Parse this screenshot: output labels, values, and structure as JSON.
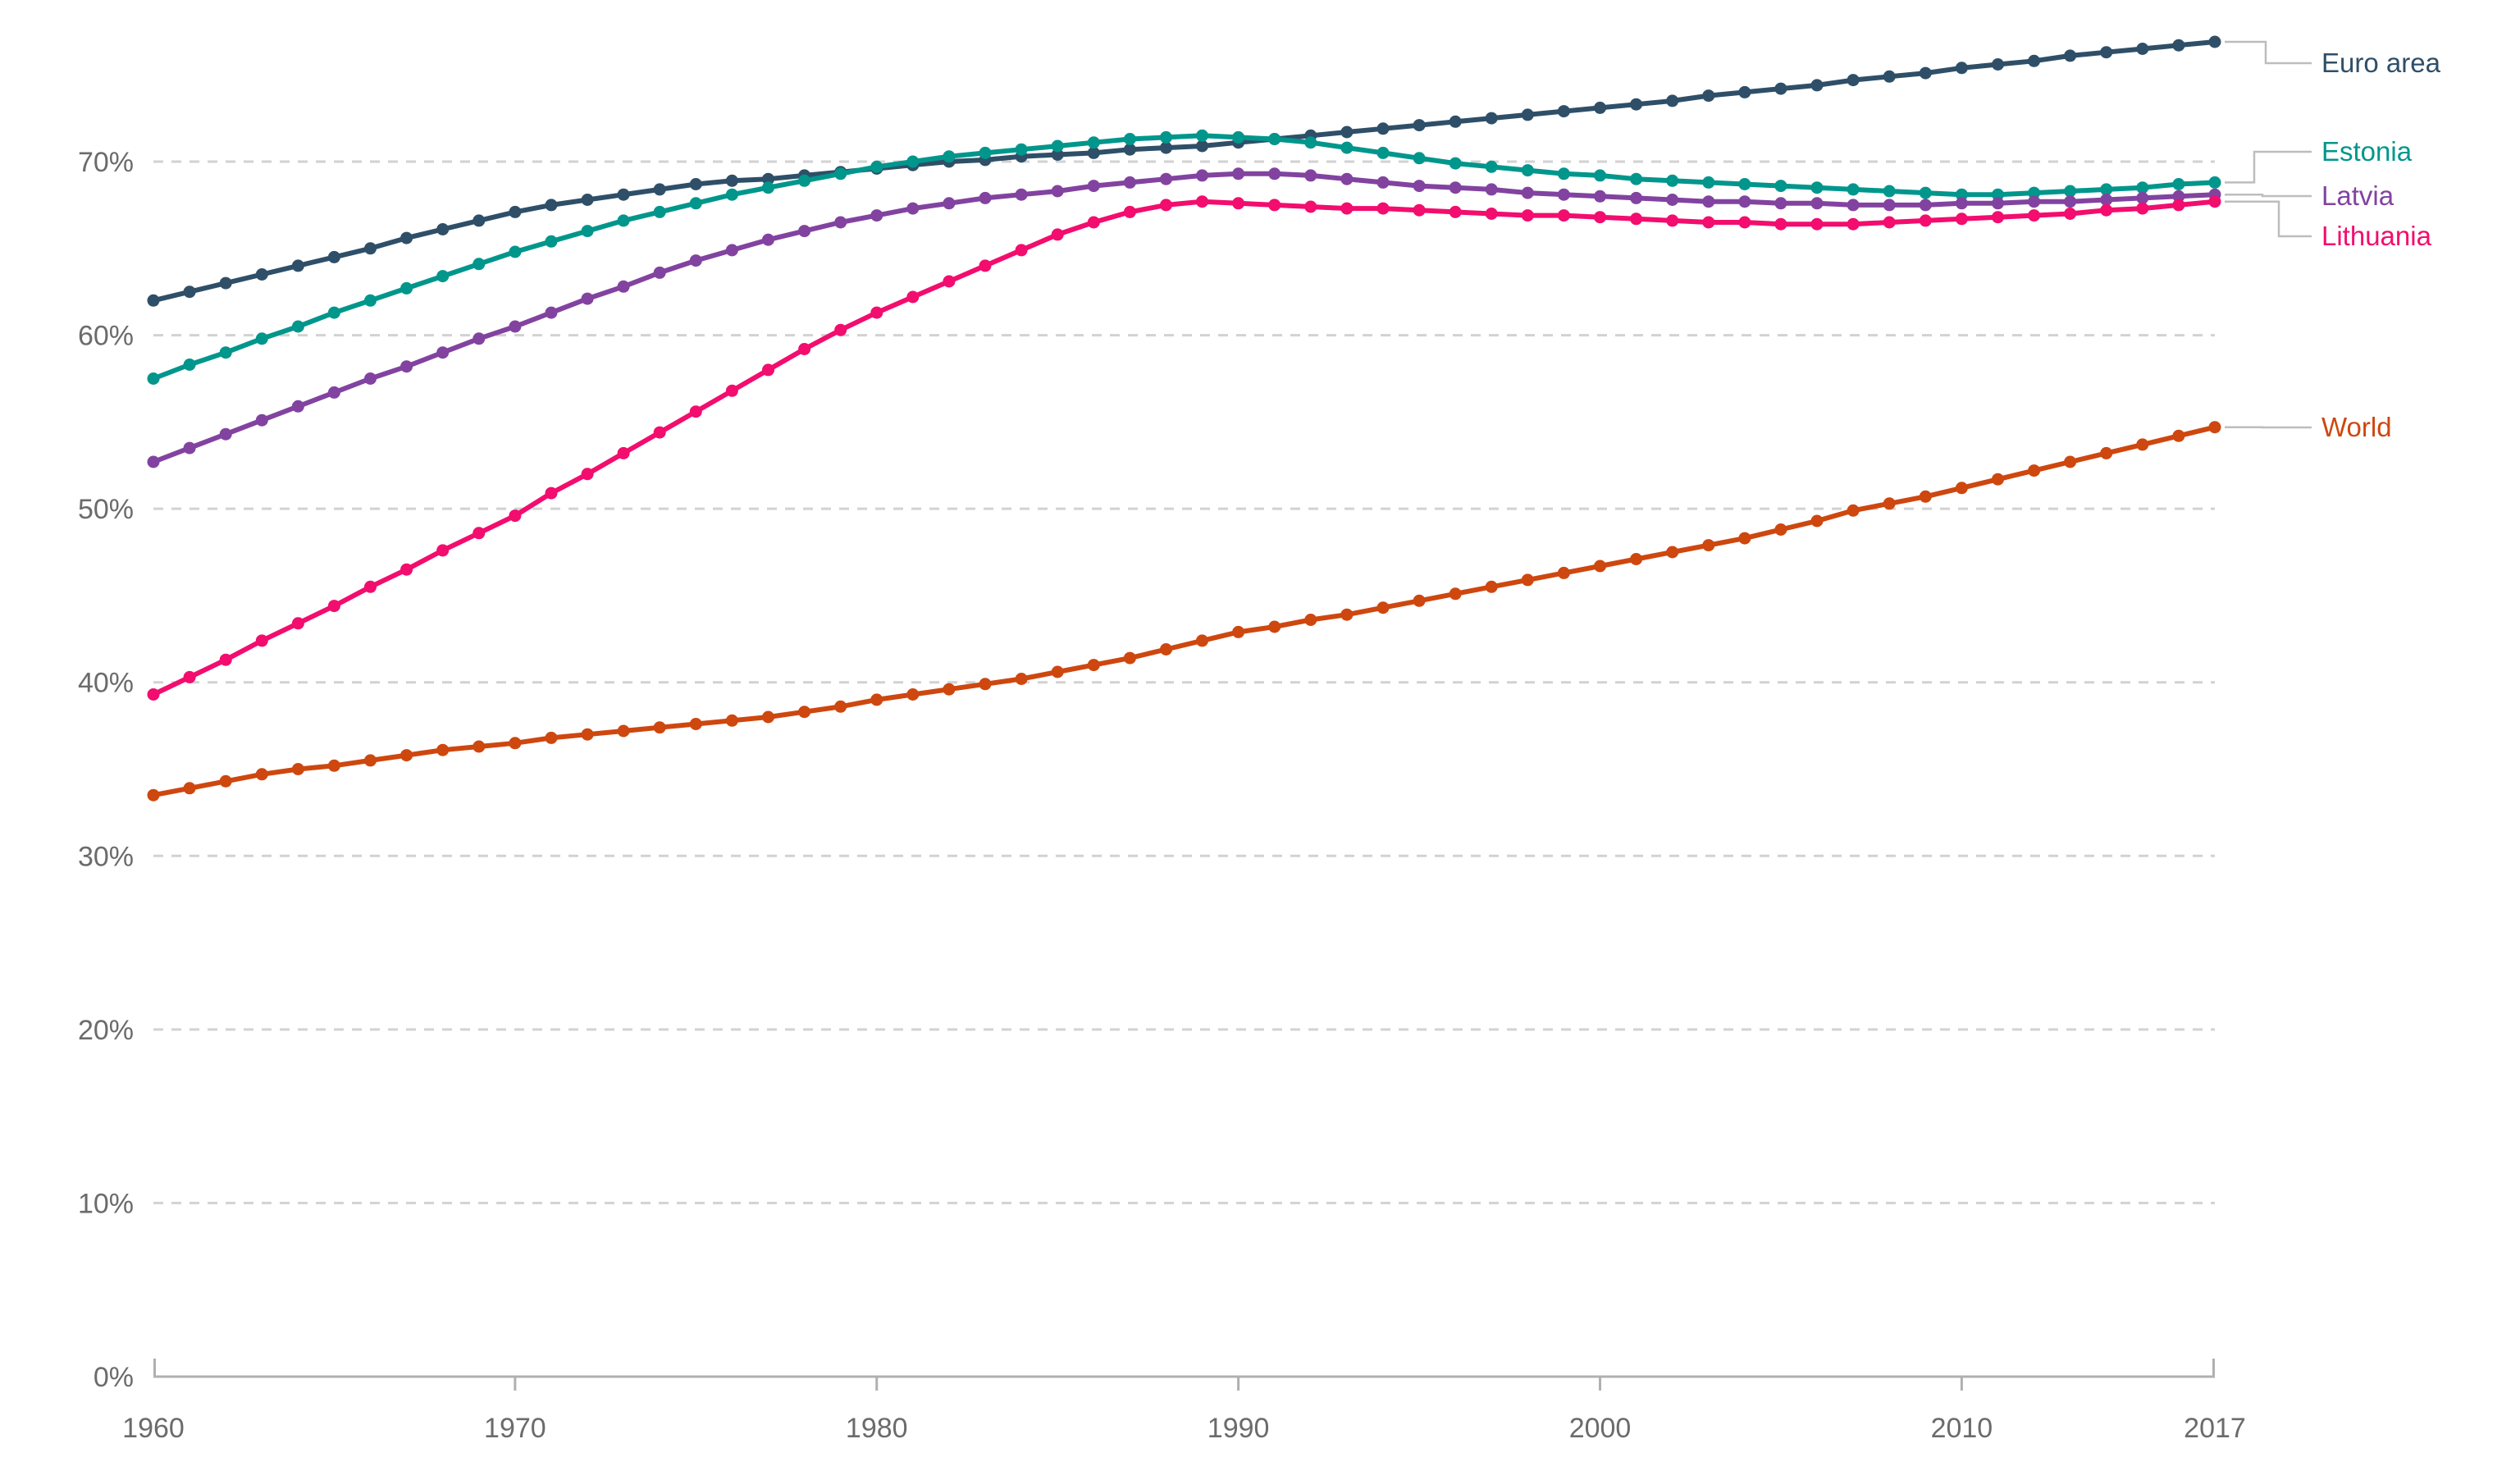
{
  "chart_data": {
    "type": "line",
    "title": "",
    "xlabel": "",
    "ylabel": "",
    "x_unit": "year",
    "y_unit": "percent",
    "xlim": [
      1960,
      2017
    ],
    "ylim": [
      0,
      79
    ],
    "grid": "horizontal-dashed",
    "legend_position": "right-end-labels",
    "x": [
      1960,
      1961,
      1962,
      1963,
      1964,
      1965,
      1966,
      1967,
      1968,
      1969,
      1970,
      1971,
      1972,
      1973,
      1974,
      1975,
      1976,
      1977,
      1978,
      1979,
      1980,
      1981,
      1982,
      1983,
      1984,
      1985,
      1986,
      1987,
      1988,
      1989,
      1990,
      1991,
      1992,
      1993,
      1994,
      1995,
      1996,
      1997,
      1998,
      1999,
      2000,
      2001,
      2002,
      2003,
      2004,
      2005,
      2006,
      2007,
      2008,
      2009,
      2010,
      2011,
      2012,
      2013,
      2014,
      2015,
      2016,
      2017
    ],
    "x_tick_labels": [
      "1960",
      "1970",
      "1980",
      "1990",
      "2000",
      "2010",
      "2017"
    ],
    "x_tick_years": [
      1960,
      1970,
      1980,
      1990,
      2000,
      2010,
      2017
    ],
    "y_tick_labels": [
      "0%",
      "10%",
      "20%",
      "30%",
      "40%",
      "50%",
      "60%",
      "70%"
    ],
    "y_tick_values": [
      0,
      10,
      20,
      30,
      40,
      50,
      60,
      70
    ],
    "series": [
      {
        "name": "Euro area",
        "color": "#2F4F68",
        "values": [
          62.0,
          62.5,
          63.0,
          63.5,
          64.0,
          64.5,
          65.0,
          65.6,
          66.1,
          66.6,
          67.1,
          67.5,
          67.8,
          68.1,
          68.4,
          68.7,
          68.9,
          69.0,
          69.2,
          69.4,
          69.6,
          69.8,
          70.0,
          70.1,
          70.3,
          70.4,
          70.5,
          70.7,
          70.8,
          70.9,
          71.1,
          71.3,
          71.5,
          71.7,
          71.9,
          72.1,
          72.3,
          72.5,
          72.7,
          72.9,
          73.1,
          73.3,
          73.5,
          73.8,
          74.0,
          74.2,
          74.4,
          74.7,
          74.9,
          75.1,
          75.4,
          75.6,
          75.8,
          76.1,
          76.3,
          76.5,
          76.7,
          76.9
        ]
      },
      {
        "name": "Estonia",
        "color": "#00968C",
        "values": [
          57.5,
          58.3,
          59.0,
          59.8,
          60.5,
          61.3,
          62.0,
          62.7,
          63.4,
          64.1,
          64.8,
          65.4,
          66.0,
          66.6,
          67.1,
          67.6,
          68.1,
          68.5,
          68.9,
          69.3,
          69.7,
          70.0,
          70.3,
          70.5,
          70.7,
          70.9,
          71.1,
          71.3,
          71.4,
          71.5,
          71.4,
          71.3,
          71.1,
          70.8,
          70.5,
          70.2,
          69.9,
          69.7,
          69.5,
          69.3,
          69.2,
          69.0,
          68.9,
          68.8,
          68.7,
          68.6,
          68.5,
          68.4,
          68.3,
          68.2,
          68.1,
          68.1,
          68.2,
          68.3,
          68.4,
          68.5,
          68.7,
          68.8
        ]
      },
      {
        "name": "Latvia",
        "color": "#8243A0",
        "values": [
          52.7,
          53.5,
          54.3,
          55.1,
          55.9,
          56.7,
          57.5,
          58.2,
          59.0,
          59.8,
          60.5,
          61.3,
          62.1,
          62.8,
          63.6,
          64.3,
          64.9,
          65.5,
          66.0,
          66.5,
          66.9,
          67.3,
          67.6,
          67.9,
          68.1,
          68.3,
          68.6,
          68.8,
          69.0,
          69.2,
          69.3,
          69.3,
          69.2,
          69.0,
          68.8,
          68.6,
          68.5,
          68.4,
          68.2,
          68.1,
          68.0,
          67.9,
          67.8,
          67.7,
          67.7,
          67.6,
          67.6,
          67.5,
          67.5,
          67.5,
          67.6,
          67.6,
          67.7,
          67.7,
          67.8,
          67.9,
          68.0,
          68.1
        ]
      },
      {
        "name": "Lithuania",
        "color": "#F20D6E",
        "values": [
          39.3,
          40.3,
          41.3,
          42.4,
          43.4,
          44.4,
          45.5,
          46.5,
          47.6,
          48.6,
          49.6,
          50.9,
          52.0,
          53.2,
          54.4,
          55.6,
          56.8,
          58.0,
          59.2,
          60.3,
          61.3,
          62.2,
          63.1,
          64.0,
          64.9,
          65.8,
          66.5,
          67.1,
          67.5,
          67.7,
          67.6,
          67.5,
          67.4,
          67.3,
          67.3,
          67.2,
          67.1,
          67.0,
          66.9,
          66.9,
          66.8,
          66.7,
          66.6,
          66.5,
          66.5,
          66.4,
          66.4,
          66.4,
          66.5,
          66.6,
          66.7,
          66.8,
          66.9,
          67.0,
          67.2,
          67.3,
          67.5,
          67.7
        ]
      },
      {
        "name": "World",
        "color": "#CE470F",
        "values": [
          33.5,
          33.9,
          34.3,
          34.7,
          35.0,
          35.2,
          35.5,
          35.8,
          36.1,
          36.3,
          36.5,
          36.8,
          37.0,
          37.2,
          37.4,
          37.6,
          37.8,
          38.0,
          38.3,
          38.6,
          39.0,
          39.3,
          39.6,
          39.9,
          40.2,
          40.6,
          41.0,
          41.4,
          41.9,
          42.4,
          42.9,
          43.2,
          43.6,
          43.9,
          44.3,
          44.7,
          45.1,
          45.5,
          45.9,
          46.3,
          46.7,
          47.1,
          47.5,
          47.9,
          48.3,
          48.8,
          49.3,
          49.9,
          50.3,
          50.7,
          51.2,
          51.7,
          52.2,
          52.7,
          53.2,
          53.7,
          54.2,
          54.7
        ]
      }
    ],
    "colors": {
      "grid_line": "#D2D2D2",
      "axis_line": "#B0B0B0",
      "tick_text": "#6B6B6B",
      "leader_line": "#BDBDBD",
      "background": "#FFFFFF"
    }
  }
}
